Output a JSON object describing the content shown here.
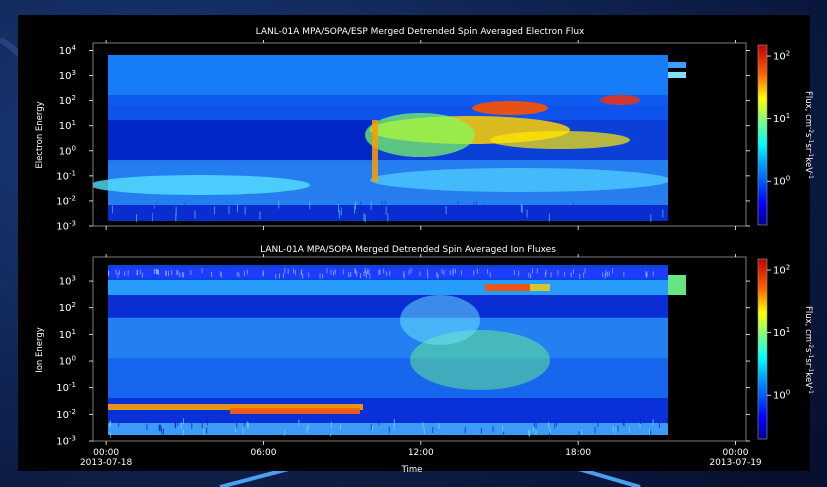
{
  "chart_data": [
    {
      "type": "heatmap",
      "title": "LANL-01A MPA/SOPA/ESP Merged Detrended Spin Averaged Electron Flux",
      "ylabel": "Electron Energy",
      "yscale": "log",
      "ylim": [
        0.001,
        20000
      ],
      "yticks": [
        {
          "value": 10000,
          "mant": "10",
          "exp": "4"
        },
        {
          "value": 1000,
          "mant": "10",
          "exp": "3"
        },
        {
          "value": 100,
          "mant": "10",
          "exp": "2"
        },
        {
          "value": 10,
          "mant": "10",
          "exp": "1"
        },
        {
          "value": 1,
          "mant": "10",
          "exp": "0"
        },
        {
          "value": 0.1,
          "mant": "10",
          "exp": "-1"
        },
        {
          "value": 0.01,
          "mant": "10",
          "exp": "-2"
        },
        {
          "value": 0.001,
          "mant": "10",
          "exp": "-3"
        }
      ],
      "xlim_hours": [
        -0.5,
        24.4
      ],
      "colorbar": {
        "label_parts": [
          "Flux, cm",
          "-2",
          "s",
          "-1",
          "sr",
          "-1",
          "keV",
          "-1"
        ],
        "scale": "log",
        "range": [
          0.2,
          150
        ],
        "ticks": [
          {
            "value": 1,
            "mant": "10",
            "exp": "0"
          },
          {
            "value": 10,
            "mant": "10",
            "exp": "1"
          },
          {
            "value": 100,
            "mant": "10",
            "exp": "2"
          }
        ]
      }
    },
    {
      "type": "heatmap",
      "title": "LANL-01A MPA/SOPA Merged Detrended Spin Averaged Ion Fluxes",
      "ylabel": "Ion Energy",
      "yscale": "log",
      "ylim": [
        0.001,
        8000
      ],
      "yticks": [
        {
          "value": 1000,
          "mant": "10",
          "exp": "3"
        },
        {
          "value": 100,
          "mant": "10",
          "exp": "2"
        },
        {
          "value": 10,
          "mant": "10",
          "exp": "1"
        },
        {
          "value": 1,
          "mant": "10",
          "exp": "0"
        },
        {
          "value": 0.1,
          "mant": "10",
          "exp": "-1"
        },
        {
          "value": 0.01,
          "mant": "10",
          "exp": "-2"
        },
        {
          "value": 0.001,
          "mant": "10",
          "exp": "-3"
        }
      ],
      "xlim_hours": [
        -0.5,
        24.4
      ],
      "xlabel": "Time",
      "xticks": [
        {
          "hours": 0,
          "label": "00:00",
          "sub": "2013-07-18"
        },
        {
          "hours": 6,
          "label": "06:00",
          "sub": ""
        },
        {
          "hours": 12,
          "label": "12:00",
          "sub": ""
        },
        {
          "hours": 18,
          "label": "18:00",
          "sub": ""
        },
        {
          "hours": 24,
          "label": "00:00",
          "sub": "2013-07-19"
        }
      ],
      "colorbar": {
        "label_parts": [
          "Flux, cm",
          "-2",
          "s",
          "-1",
          "sr",
          "-1",
          "keV",
          "-1"
        ],
        "scale": "log",
        "range": [
          0.2,
          150
        ],
        "ticks": [
          {
            "value": 1,
            "mant": "10",
            "exp": "0"
          },
          {
            "value": 10,
            "mant": "10",
            "exp": "1"
          },
          {
            "value": 100,
            "mant": "10",
            "exp": "2"
          }
        ]
      }
    }
  ]
}
